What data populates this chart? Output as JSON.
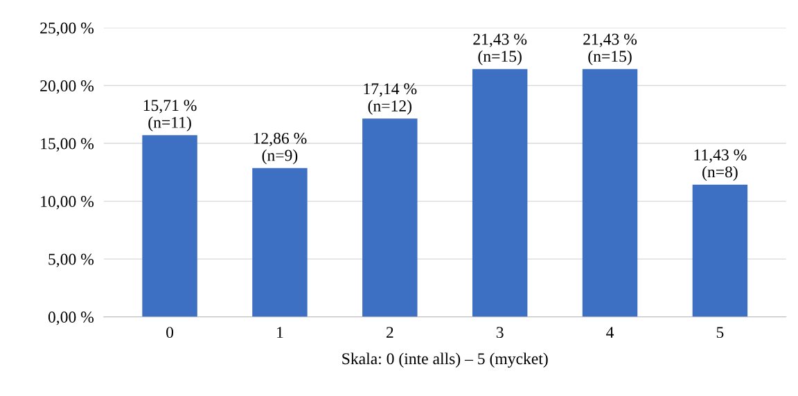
{
  "chart_data": {
    "type": "bar",
    "xlabel": "Skala: 0 (inte alls) – 5 (mycket)",
    "categories": [
      "0",
      "1",
      "2",
      "3",
      "4",
      "5"
    ],
    "values": [
      15.71,
      12.86,
      17.14,
      21.43,
      21.43,
      11.43
    ],
    "value_labels": [
      "15,71 %\n(n=11)",
      "12,86 %\n(n=9)",
      "17,14 %\n(n=12)",
      "21,43 %\n(n=15)",
      "21,43 %\n(n=15)",
      "11,43 %\n(n=8)"
    ],
    "color": "#3d6fc2",
    "ylim": [
      0,
      25
    ],
    "yticks": [
      {
        "value": 0,
        "label": "0,00 %"
      },
      {
        "value": 5,
        "label": "5,00 %"
      },
      {
        "value": 10,
        "label": "10,00 %"
      },
      {
        "value": 15,
        "label": "15,00 %"
      },
      {
        "value": 20,
        "label": "20,00 %"
      },
      {
        "value": 25,
        "label": "25,00 %"
      }
    ],
    "grid": "y",
    "legend": false
  }
}
